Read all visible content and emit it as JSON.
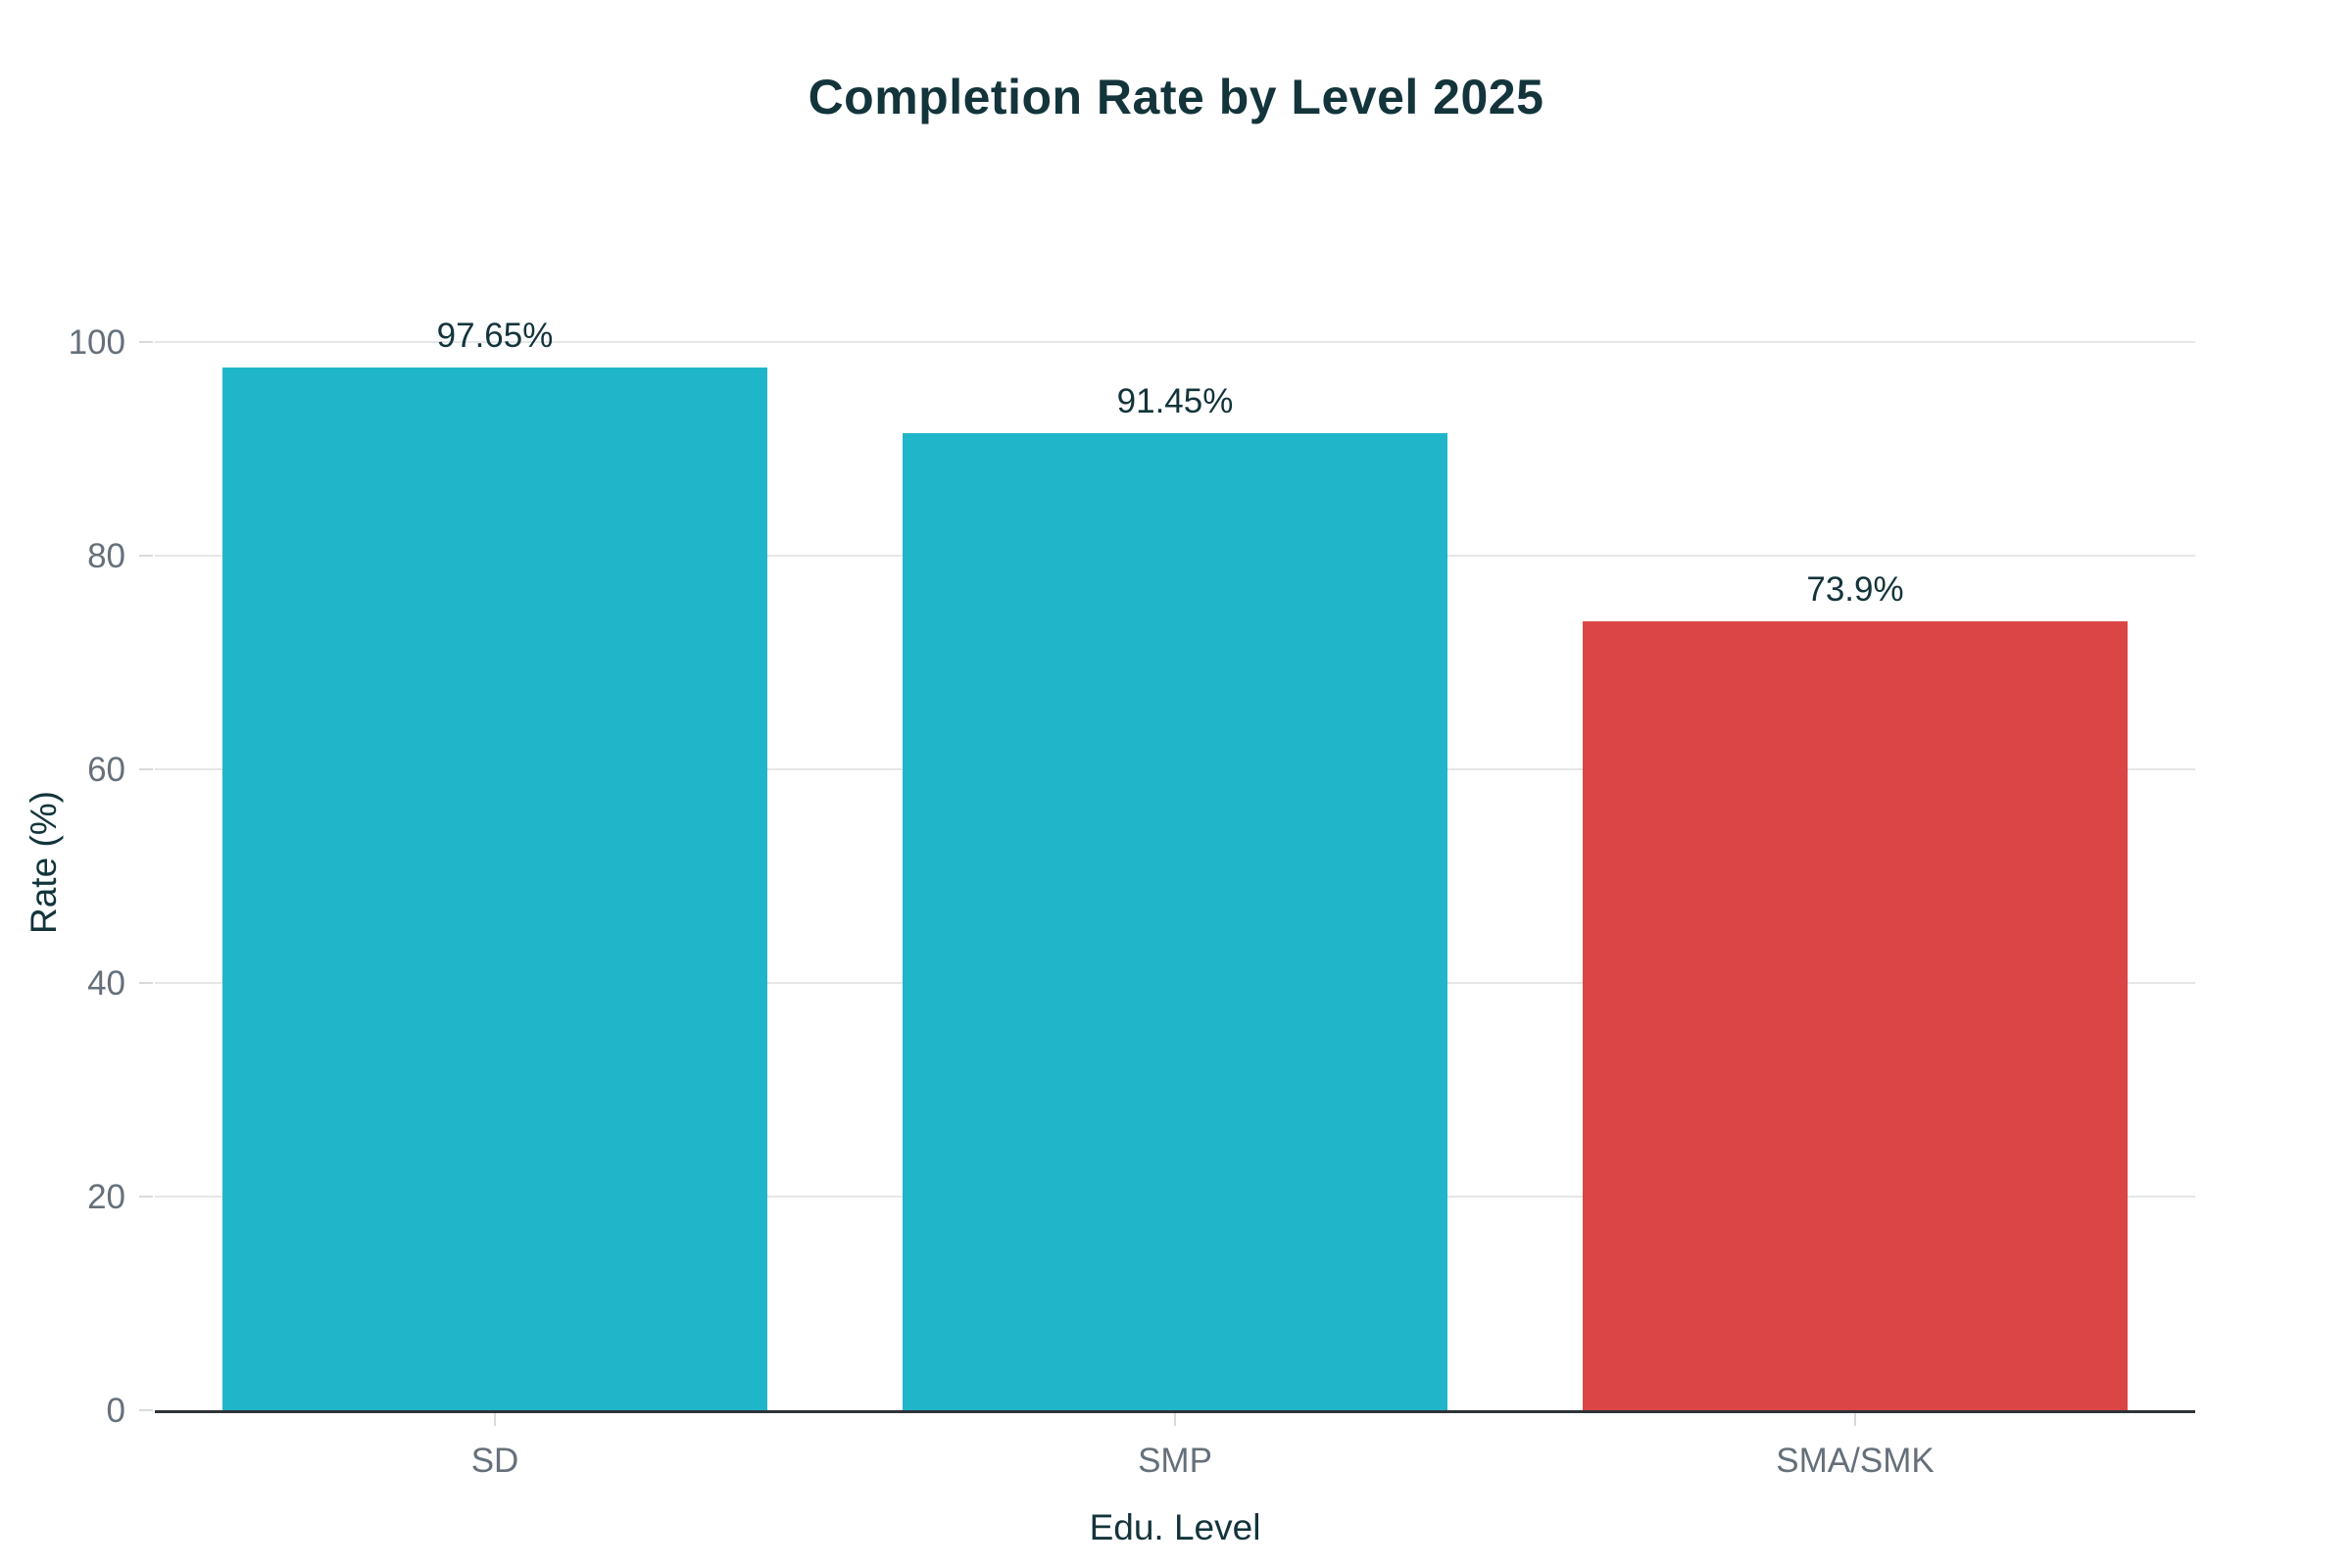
{
  "page": {
    "background": "#ffffff"
  },
  "chart_data": {
    "type": "bar",
    "title": "Completion Rate by Level 2025",
    "xlabel": "Edu. Level",
    "ylabel": "Rate (%)",
    "categories": [
      "SD",
      "SMP",
      "SMA/SMK"
    ],
    "values": [
      97.65,
      91.45,
      73.9
    ],
    "value_labels": [
      "97.65%",
      "91.45%",
      "73.9%"
    ],
    "bar_colors": [
      "#20B6C9",
      "#20B6C9",
      "#DB4545"
    ],
    "ylim": [
      0,
      100
    ],
    "yticks": [
      0,
      20,
      40,
      60,
      80,
      100
    ],
    "grid": "horizontal-only",
    "legend": "none",
    "colors": {
      "teal_bar": "#20B6C9",
      "red_bar": "#DB4545",
      "title_text": "#13343B",
      "axis_title_text": "#13343B",
      "tick_text": "#66707A",
      "value_label_text": "#13343B",
      "gridline": "#E4E6E8",
      "axis_line": "#2E3338",
      "background": "#ffffff"
    }
  }
}
